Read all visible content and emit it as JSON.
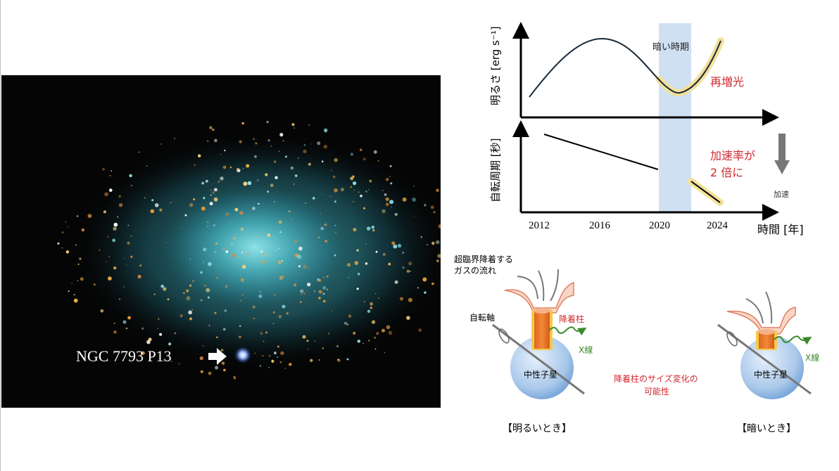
{
  "image": {
    "source_label": "NGC 7793 P13",
    "arrow_icon": "right-arrow"
  },
  "chart": {
    "top_ylabel": "明るさ [erg s⁻¹]",
    "bottom_ylabel": "自転周期 [秒]",
    "xlabel": "時間 [年]",
    "xticks": [
      "2012",
      "2016",
      "2020",
      "2024"
    ],
    "dark_period_label": "暗い時期",
    "rebrightening_label": "再増光",
    "spinup_note_line1": "加速率が",
    "spinup_note_line2": "2 倍に",
    "acceleration_label": "加速",
    "colors": {
      "curve": "#1a2a3a",
      "highlight": "#f3e19a",
      "band": "#cfe0f3",
      "annotation": "#d0282e",
      "arrow": "#777777"
    }
  },
  "diagram": {
    "gas_flow_line1": "超臨界降着する",
    "gas_flow_line2": "ガスの流れ",
    "spin_axis": "自転軸",
    "accretion_column": "降着柱",
    "xray": "X線",
    "neutron_star": "中性子星",
    "center_note_line1": "降着柱のサイズ変化の",
    "center_note_line2": "可能性",
    "bright_caption": "【明るいとき】",
    "dark_caption": "【暗いとき】"
  }
}
